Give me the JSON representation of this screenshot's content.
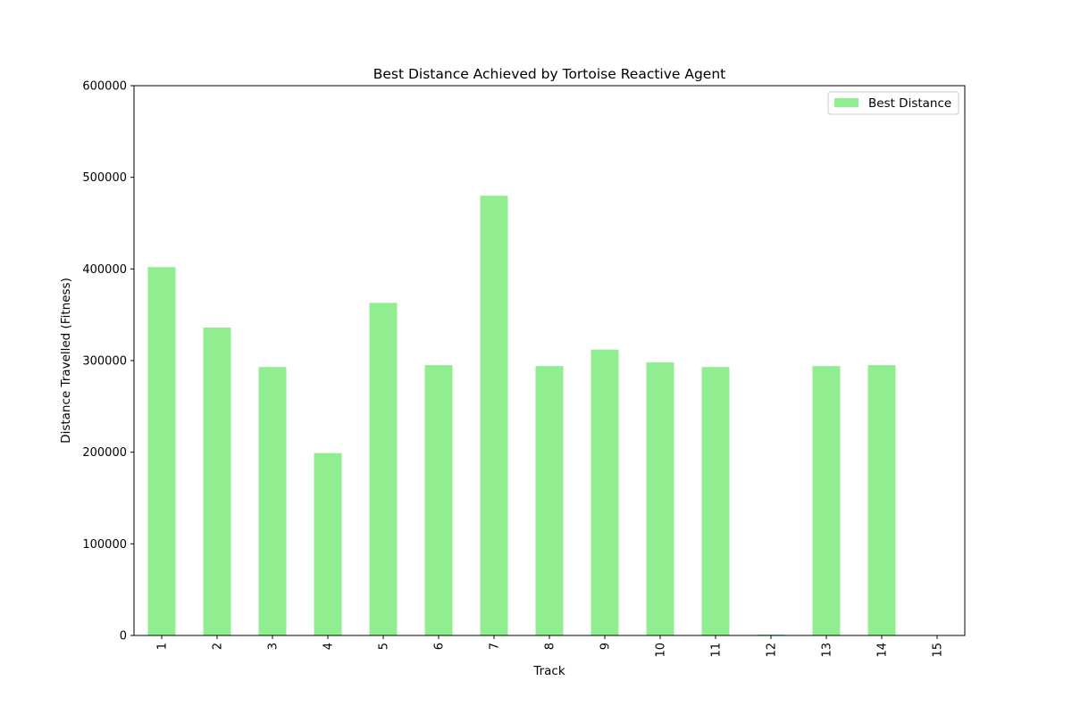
{
  "chart_data": {
    "type": "bar",
    "title": "Best Distance Achieved by Tortoise Reactive Agent",
    "xlabel": "Track",
    "ylabel": "Distance Travelled (Fitness)",
    "categories": [
      "1",
      "2",
      "3",
      "4",
      "5",
      "6",
      "7",
      "8",
      "9",
      "10",
      "11",
      "12",
      "13",
      "14",
      "15"
    ],
    "series": [
      {
        "name": "Best Distance",
        "color": "#90ee90",
        "values": [
          402000,
          336000,
          293000,
          199000,
          363000,
          295000,
          480000,
          294000,
          312000,
          298000,
          293000,
          1000,
          294000,
          295000,
          0
        ]
      }
    ],
    "ylim": [
      0,
      600000
    ],
    "yticks": [
      0,
      100000,
      200000,
      300000,
      400000,
      500000,
      600000
    ],
    "ytick_labels": [
      "0",
      "100000",
      "200000",
      "300000",
      "400000",
      "500000",
      "600000"
    ],
    "grid": false,
    "legend_position": "top-right"
  }
}
